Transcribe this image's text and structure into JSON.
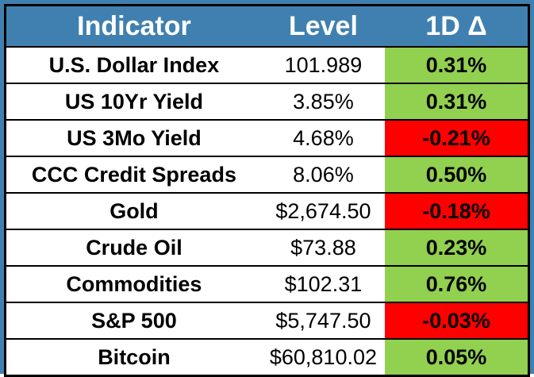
{
  "colors": {
    "frame_bg": "#4080B0",
    "header_bg": "#4080B0",
    "header_text": "#FFFFFF",
    "positive_bg": "#92D050",
    "negative_bg": "#FF0000",
    "body_text": "#000000",
    "border": "#000000",
    "cell_bg": "#FFFFFF"
  },
  "chart_data": {
    "type": "table",
    "title": "",
    "columns": [
      "Indicator",
      "Level",
      "1D Δ"
    ],
    "rows": [
      {
        "indicator": "U.S. Dollar Index",
        "level": "101.989",
        "delta": "0.31%",
        "direction": "up"
      },
      {
        "indicator": "US 10Yr Yield",
        "level": "3.85%",
        "delta": "0.31%",
        "direction": "up"
      },
      {
        "indicator": "US 3Mo Yield",
        "level": "4.68%",
        "delta": "-0.21%",
        "direction": "down"
      },
      {
        "indicator": "CCC Credit Spreads",
        "level": "8.06%",
        "delta": "0.50%",
        "direction": "up"
      },
      {
        "indicator": "Gold",
        "level": "$2,674.50",
        "delta": "-0.18%",
        "direction": "down"
      },
      {
        "indicator": "Crude Oil",
        "level": "$73.88",
        "delta": "0.23%",
        "direction": "up"
      },
      {
        "indicator": "Commodities",
        "level": "$102.31",
        "delta": "0.76%",
        "direction": "up"
      },
      {
        "indicator": "S&P 500",
        "level": "$5,747.50",
        "delta": "-0.03%",
        "direction": "down"
      },
      {
        "indicator": "Bitcoin",
        "level": "$60,810.02",
        "delta": "0.05%",
        "direction": "up"
      }
    ]
  }
}
